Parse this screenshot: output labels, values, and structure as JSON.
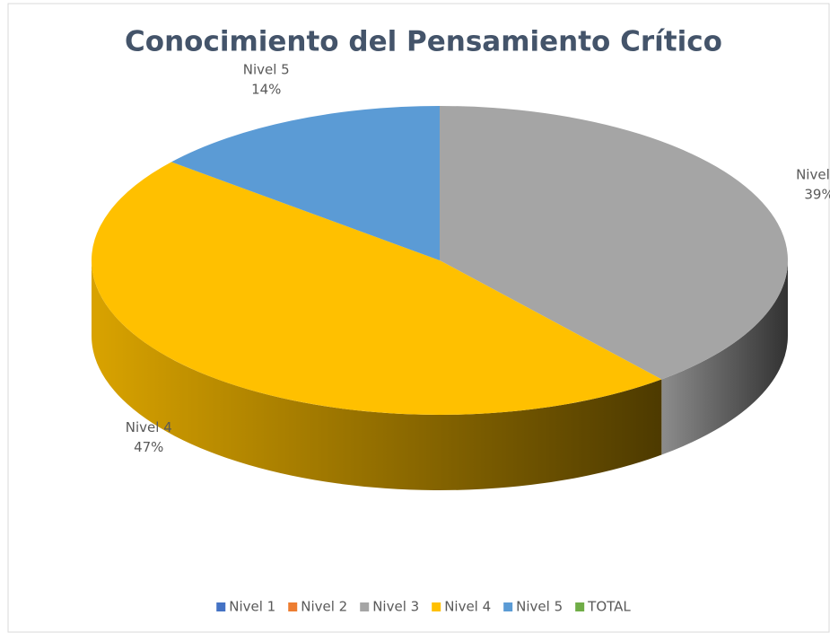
{
  "chart_data": {
    "type": "pie",
    "title": "Conocimiento del Pensamiento Crítico",
    "categories": [
      "Nivel 1",
      "Nivel 2",
      "Nivel 3",
      "Nivel 4",
      "Nivel 5",
      "TOTAL"
    ],
    "values": [
      0,
      0,
      39,
      47,
      14,
      0
    ],
    "value_labels": [
      null,
      null,
      "39%",
      "47%",
      "14%",
      null
    ],
    "colors": [
      "#4472c4",
      "#ed7d31",
      "#a5a5a5",
      "#ffc000",
      "#5b9bd5",
      "#70ad47"
    ],
    "legend": "bottom"
  }
}
